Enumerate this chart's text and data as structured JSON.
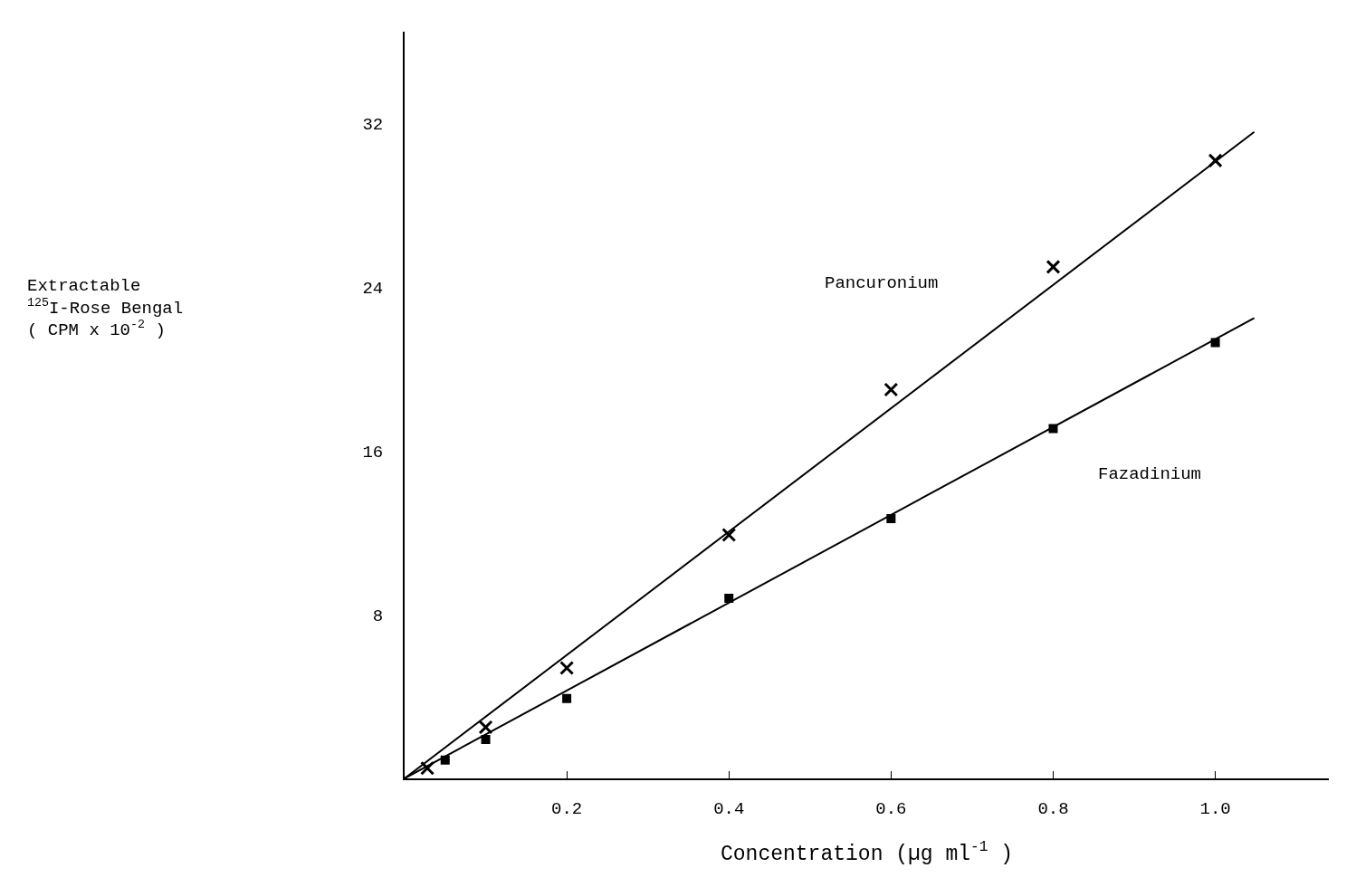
{
  "chart_data": {
    "type": "scatter",
    "xlabel": "Concentration (µg ml$^{-1}$ )",
    "annotations": [
      "Extractable\n$^{125}$I-Rose Bengal\n( CPM x 10$^{-2}$ )",
      "Pancuronium",
      "Fazadinium"
    ],
    "xlim": [
      0,
      1.14
    ],
    "xticks": [
      {
        "value": 0.2,
        "label": "0.2"
      },
      {
        "value": 0.4,
        "label": "0.4"
      },
      {
        "value": 0.6,
        "label": "0.6"
      },
      {
        "value": 0.8,
        "label": "0.8"
      },
      {
        "value": 1.0,
        "label": "1.0"
      }
    ],
    "ylim": [
      0,
      36.5
    ],
    "yticks": [
      8,
      16,
      24,
      32
    ],
    "grid": false,
    "line_style": "solid",
    "series": [
      {
        "marker": "cross",
        "color": "#000000",
        "x": [
          0.028,
          0.1,
          0.2,
          0.4,
          0.6,
          0.8,
          1.0
        ],
        "values": [
          0.5,
          2.5,
          5.4,
          11.9,
          19.0,
          25.0,
          30.2
        ]
      },
      {
        "type": "line",
        "color": "#000000",
        "x": [
          0,
          1.048
        ],
        "values": [
          0,
          31.6
        ]
      },
      {
        "marker": "square",
        "color": "#000000",
        "x": [
          0.05,
          0.1,
          0.2,
          0.4,
          0.6,
          0.8,
          1.0
        ],
        "values": [
          0.9,
          1.9,
          3.9,
          8.8,
          12.7,
          17.1,
          21.3
        ]
      },
      {
        "type": "line",
        "color": "#000000",
        "x": [
          0,
          1.048
        ],
        "values": [
          0,
          22.5
        ]
      }
    ]
  }
}
